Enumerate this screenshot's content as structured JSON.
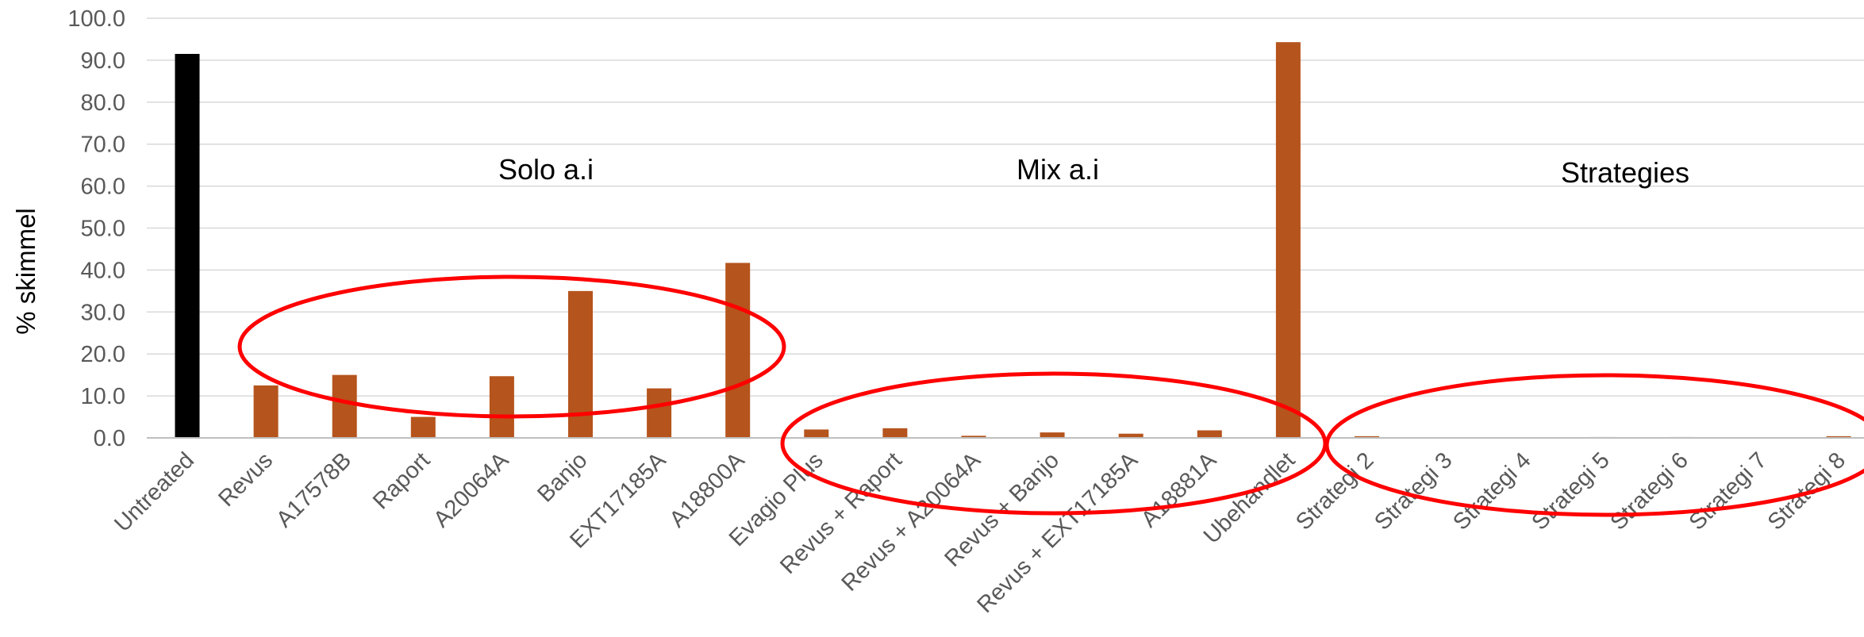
{
  "chart_data": {
    "type": "bar",
    "ylabel": "% skimmel",
    "ylim": [
      0,
      100
    ],
    "yticks": [
      "0.0",
      "10.0",
      "20.0",
      "30.0",
      "40.0",
      "50.0",
      "60.0",
      "70.0",
      "80.0",
      "90.0",
      "100.0"
    ],
    "grid": true,
    "categories": [
      "Untreated",
      "Revus",
      "A17578B",
      "Raport",
      "A20064A",
      "Banjo",
      "EXT17185A",
      "A18800A",
      "Evagio Plus",
      "Revus + Raport",
      "Revus + A20064A",
      "Revus + Banjo",
      "Revus + EXT17185A",
      "A18881A",
      "Ubehandlet",
      "Strategi 2",
      "Strategi 3",
      "Strategi 4",
      "Strategi 5",
      "Strategi 6",
      "Strategi 7",
      "Strategi 8"
    ],
    "values": [
      91.5,
      12.5,
      15.0,
      5.0,
      14.7,
      35.0,
      11.8,
      41.7,
      2.0,
      2.3,
      0.5,
      1.3,
      1.0,
      1.8,
      94.3,
      0.4,
      0,
      0,
      0.2,
      0.2,
      0,
      0.4
    ],
    "bar_colors": [
      "#000000",
      "#b5541c",
      "#b5541c",
      "#b5541c",
      "#b5541c",
      "#b5541c",
      "#b5541c",
      "#b5541c",
      "#b5541c",
      "#b5541c",
      "#b5541c",
      "#b5541c",
      "#b5541c",
      "#b5541c",
      "#b5541c",
      "#b5541c",
      "#b5541c",
      "#b5541c",
      "#b5541c",
      "#b5541c",
      "#b5541c",
      "#b5541c"
    ],
    "annotations": [
      {
        "text": "Solo a.i",
        "categories": [
          "Revus",
          "A18800A"
        ]
      },
      {
        "text": "Mix a.i",
        "categories": [
          "Evagio Plus",
          "A18881A"
        ]
      },
      {
        "text": "Strategies",
        "categories": [
          "Strategi 2",
          "Strategi 8"
        ]
      }
    ],
    "highlight_color": "#ff0000"
  }
}
